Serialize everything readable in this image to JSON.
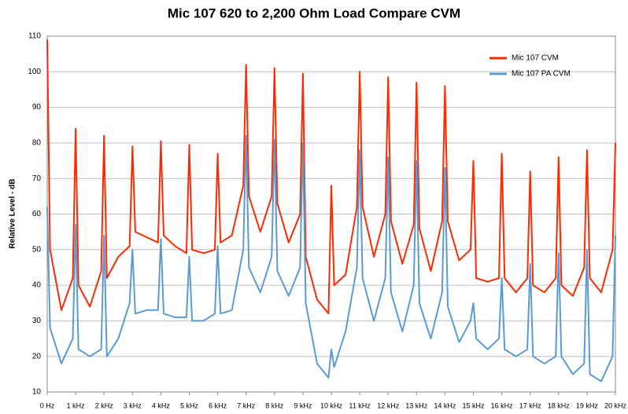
{
  "chart_data": {
    "type": "line",
    "title": "Mic 107 620 to 2,200 Ohm Load Compare CVM",
    "y_label": "Relative Level - dB",
    "x": [
      0,
      100,
      500,
      900,
      1000,
      1100,
      1500,
      1900,
      2000,
      2100,
      2500,
      2900,
      3000,
      3100,
      3500,
      3900,
      4000,
      4100,
      4500,
      4900,
      5000,
      5100,
      5500,
      5900,
      6000,
      6100,
      6500,
      6900,
      7000,
      7100,
      7500,
      7900,
      8000,
      8100,
      8500,
      8900,
      9000,
      9100,
      9500,
      9900,
      10000,
      10100,
      10500,
      10900,
      11000,
      11100,
      11500,
      11900,
      12000,
      12100,
      12500,
      12900,
      13000,
      13100,
      13500,
      13900,
      14000,
      14100,
      14500,
      14900,
      15000,
      15100,
      15500,
      15900,
      16000,
      16100,
      16500,
      16900,
      17000,
      17100,
      17500,
      17900,
      18000,
      18100,
      18500,
      18900,
      19000,
      19100,
      19500,
      19900,
      20000
    ],
    "series": [
      {
        "name": "Mic 107 CVM",
        "color": "#ff2a00",
        "values": [
          109,
          50,
          33,
          42,
          84,
          40,
          34,
          44,
          82,
          42,
          48,
          51,
          79,
          55,
          53.5,
          52,
          80.5,
          54,
          51,
          49,
          79.5,
          50,
          49,
          50,
          77,
          52,
          54,
          68,
          102,
          65,
          55,
          65,
          101,
          63,
          52,
          60,
          99.5,
          48,
          36,
          32,
          68,
          40,
          43,
          62,
          100,
          62,
          48,
          60,
          98.5,
          58,
          46,
          57,
          97,
          56,
          44,
          58,
          96,
          58,
          47,
          50,
          75,
          42,
          41,
          42,
          77,
          42,
          38,
          42,
          72,
          40,
          38,
          42,
          76,
          40,
          37,
          45,
          78,
          42,
          38,
          50,
          80
        ]
      },
      {
        "name": "Mic 107 PA CVM",
        "color": "#5b9bd5",
        "values": [
          62,
          28,
          18,
          25,
          57,
          22,
          20,
          22,
          54,
          20,
          25,
          35,
          50,
          32,
          33,
          33,
          53,
          32,
          31,
          31,
          48,
          30,
          30,
          32,
          51,
          32,
          33,
          50,
          82,
          45,
          38,
          48,
          81,
          44,
          37,
          45,
          80,
          35,
          18,
          14,
          22,
          17,
          27,
          45,
          78,
          42,
          30,
          42,
          76,
          38,
          27,
          40,
          75,
          35,
          25,
          38,
          73,
          34,
          24,
          30,
          35,
          25,
          22,
          25,
          42,
          22,
          20,
          22,
          46,
          20,
          18,
          20,
          49,
          20,
          15,
          18,
          50,
          15,
          13,
          20,
          54
        ]
      }
    ],
    "xlim": [
      0,
      20000
    ],
    "xticks": [
      {
        "value": 0,
        "label": "0 Hz"
      },
      {
        "value": 1000,
        "label": "1 kHz"
      },
      {
        "value": 2000,
        "label": "2 kHz"
      },
      {
        "value": 3000,
        "label": "3 kHz"
      },
      {
        "value": 4000,
        "label": "4 kHz"
      },
      {
        "value": 5000,
        "label": "5 kHz"
      },
      {
        "value": 6000,
        "label": "6 kHz"
      },
      {
        "value": 7000,
        "label": "7 kHz"
      },
      {
        "value": 8000,
        "label": "8 kHz"
      },
      {
        "value": 9000,
        "label": "9 kHz"
      },
      {
        "value": 10000,
        "label": "10 kHz"
      },
      {
        "value": 11000,
        "label": "11 kHz"
      },
      {
        "value": 12000,
        "label": "12 kHz"
      },
      {
        "value": 13000,
        "label": "13 kHz"
      },
      {
        "value": 14000,
        "label": "14 kHz"
      },
      {
        "value": 15000,
        "label": "15 kHz"
      },
      {
        "value": 16000,
        "label": "16 kHz"
      },
      {
        "value": 17000,
        "label": "17 kHz"
      },
      {
        "value": 18000,
        "label": "18 kHz"
      },
      {
        "value": 19000,
        "label": "19 kHz"
      },
      {
        "value": 20000,
        "label": "20 kHz"
      }
    ],
    "ylim": [
      10,
      110
    ],
    "yticks": [
      10,
      20,
      30,
      40,
      50,
      60,
      70,
      80,
      90,
      100,
      110
    ],
    "grid": true,
    "legend": "top-right"
  }
}
